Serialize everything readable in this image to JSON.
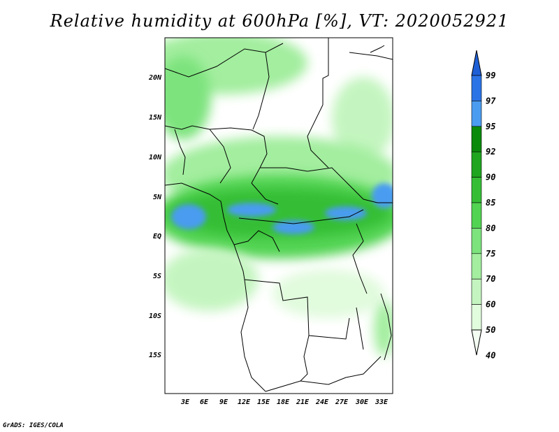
{
  "title": "Relative humidity at 600hPa [%], VT: 2020052921",
  "credit": "GrADS: IGES/COLA",
  "map": {
    "lon_ticks": [
      "3E",
      "6E",
      "9E",
      "12E",
      "15E",
      "18E",
      "21E",
      "24E",
      "27E",
      "30E",
      "33E"
    ],
    "lat_ticks": [
      "20N",
      "15N",
      "10N",
      "5N",
      "EQ",
      "5S",
      "10S",
      "15S"
    ]
  },
  "colorbar": {
    "labels": [
      "99",
      "97",
      "95",
      "92",
      "90",
      "85",
      "80",
      "75",
      "70",
      "60",
      "50",
      "40"
    ],
    "colors": [
      "#1e5fd6",
      "#2b74e6",
      "#4a9cf0",
      "#0a8a0a",
      "#1fa51f",
      "#35be35",
      "#52d452",
      "#7de37d",
      "#a3ee9f",
      "#c4f5c0",
      "#e1fbdd",
      "#f4fef2"
    ]
  }
}
